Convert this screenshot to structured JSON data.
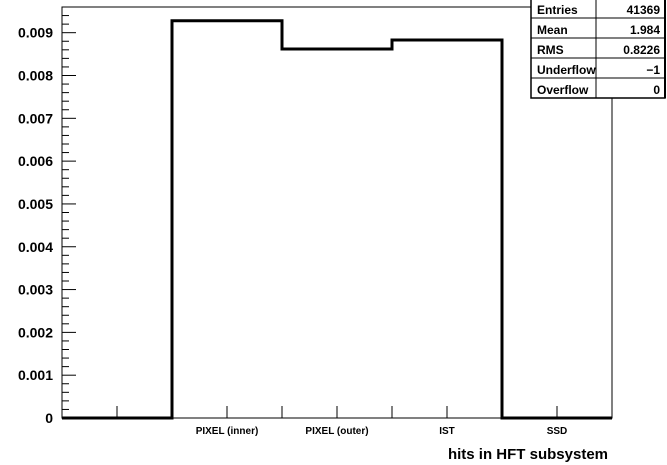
{
  "chart_data": {
    "type": "histogram",
    "title": "",
    "xlabel": "hits in HFT subsystem",
    "ylabel": "",
    "x_range": [
      0,
      5
    ],
    "ylim": [
      0,
      0.0096
    ],
    "categories": [
      "",
      "PIXEL (inner)",
      "PIXEL (outer)",
      "IST",
      "SSD"
    ],
    "values": [
      0,
      0.00928,
      0.00862,
      0.00883,
      0
    ],
    "y_ticks": [
      "0",
      "0.001",
      "0.002",
      "0.003",
      "0.004",
      "0.005",
      "0.006",
      "0.007",
      "0.008",
      "0.009"
    ],
    "y_tick_values": [
      0,
      0.001,
      0.002,
      0.003,
      0.004,
      0.005,
      0.006,
      0.007,
      0.008,
      0.009
    ],
    "grid": false,
    "line_color": "#000000"
  },
  "stats_box": {
    "rows": [
      {
        "label": "Entries",
        "value": "41369"
      },
      {
        "label": "Mean",
        "value": "1.984"
      },
      {
        "label": "RMS",
        "value": "0.8226"
      },
      {
        "label": "Underflow",
        "value": "−1"
      },
      {
        "label": "Overflow",
        "value": "0"
      }
    ]
  }
}
